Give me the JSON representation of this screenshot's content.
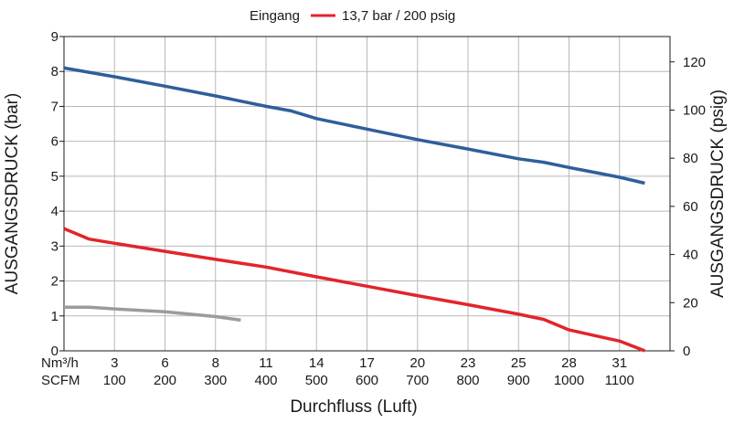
{
  "legend": {
    "prefix": "Eingang",
    "label": "13,7 bar / 200 psig",
    "color": "#e3242b"
  },
  "chart_data": {
    "type": "line",
    "xlabel": "Durchfluss (Luft)",
    "ylabel_left": "AUSGANGSDRUCK (bar)",
    "ylabel_right": "AUSGANGSDRUCK (psig)",
    "x_units": [
      "Nm³/h",
      "SCFM"
    ],
    "x_ticks_nm3h": [
      "3",
      "6",
      "8",
      "11",
      "14",
      "17",
      "20",
      "23",
      "25",
      "28",
      "31"
    ],
    "x_ticks_scfm": [
      "100",
      "200",
      "300",
      "400",
      "500",
      "600",
      "700",
      "800",
      "900",
      "1000",
      "1100"
    ],
    "xlim": [
      0,
      1200
    ],
    "ylim_left": [
      0,
      9
    ],
    "yticks_left": [
      "0",
      "1",
      "2",
      "3",
      "4",
      "5",
      "6",
      "7",
      "8",
      "9"
    ],
    "yticks_right": [
      "0",
      "20",
      "40",
      "60",
      "80",
      "100",
      "120"
    ],
    "psig_per_bar": 14.5038,
    "grid": true,
    "legend_position": "top-center",
    "series": [
      {
        "color": "#2e5f9a",
        "x": [
          0,
          100,
          200,
          300,
          400,
          450,
          500,
          600,
          700,
          800,
          900,
          950,
          1000,
          1100,
          1150
        ],
        "y": [
          8.1,
          7.85,
          7.58,
          7.3,
          7.0,
          6.87,
          6.65,
          6.35,
          6.05,
          5.78,
          5.5,
          5.4,
          5.25,
          4.97,
          4.8
        ]
      },
      {
        "name": "13,7 bar / 200 psig",
        "color": "#e3242b",
        "x": [
          0,
          50,
          100,
          200,
          300,
          400,
          500,
          600,
          700,
          800,
          900,
          950,
          1000,
          1100,
          1150
        ],
        "y": [
          3.5,
          3.2,
          3.08,
          2.85,
          2.62,
          2.4,
          2.12,
          1.85,
          1.58,
          1.32,
          1.05,
          0.9,
          0.6,
          0.28,
          0.0
        ]
      },
      {
        "color": "#9b9b9b",
        "x": [
          0,
          50,
          100,
          200,
          300,
          350
        ],
        "y": [
          1.25,
          1.25,
          1.2,
          1.12,
          0.98,
          0.88
        ]
      }
    ]
  }
}
